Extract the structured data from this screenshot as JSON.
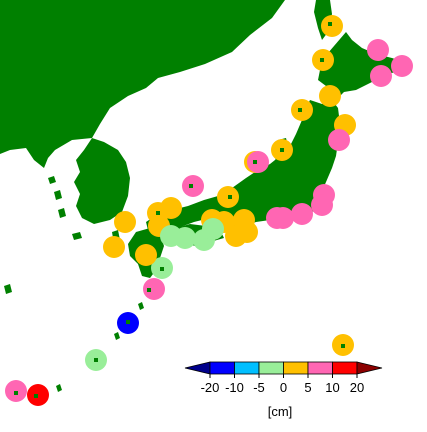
{
  "map": {
    "land_color": "#008000",
    "sea_color": "#ffffff",
    "stations": [
      {
        "level": 0
      },
      {
        "level": 5
      },
      {
        "level": 5
      },
      {
        "level": 5
      },
      {
        "level": 0
      },
      {
        "level": 0
      },
      {
        "level": 0
      },
      {
        "level": 0
      },
      {
        "level": 5
      },
      {
        "level": 0
      },
      {
        "level": 0
      },
      {
        "level": 5
      },
      {
        "level": 5
      },
      {
        "level": 0
      },
      {
        "level": 5
      },
      {
        "level": 5
      },
      {
        "level": 5
      },
      {
        "level": 5
      },
      {
        "level": 5
      },
      {
        "level": 0
      },
      {
        "level": 0
      },
      {
        "level": 0
      },
      {
        "level": 0
      },
      {
        "level": 0
      },
      {
        "level": 0
      },
      {
        "level": 0
      },
      {
        "level": -5
      },
      {
        "level": -5
      },
      {
        "level": 0
      },
      {
        "level": -5
      },
      {
        "level": -5
      },
      {
        "level": 0
      },
      {
        "level": 0
      },
      {
        "level": 0
      },
      {
        "level": -5
      },
      {
        "level": 5
      },
      {
        "level": -15
      },
      {
        "level": -5
      },
      {
        "level": 0
      },
      {
        "level": 5
      },
      {
        "level": 10
      }
    ]
  },
  "colorbar": {
    "bins": [
      {
        "lower": -20,
        "upper": -10,
        "color": "#0000ff"
      },
      {
        "lower": -10,
        "upper": -5,
        "color": "#00bfff"
      },
      {
        "lower": -5,
        "upper": 0,
        "color": "#99ee99"
      },
      {
        "lower": 0,
        "upper": 5,
        "color": "#ffc000"
      },
      {
        "lower": 5,
        "upper": 10,
        "color": "#ff66b3"
      },
      {
        "lower": 10,
        "upper": 20,
        "color": "#ff0000"
      }
    ],
    "under_color": "#00008b",
    "over_color": "#8b0000",
    "tick_labels": [
      "-20",
      "-10",
      "-5",
      "0",
      "5",
      "10",
      "20"
    ],
    "unit_label": "[cm]"
  }
}
